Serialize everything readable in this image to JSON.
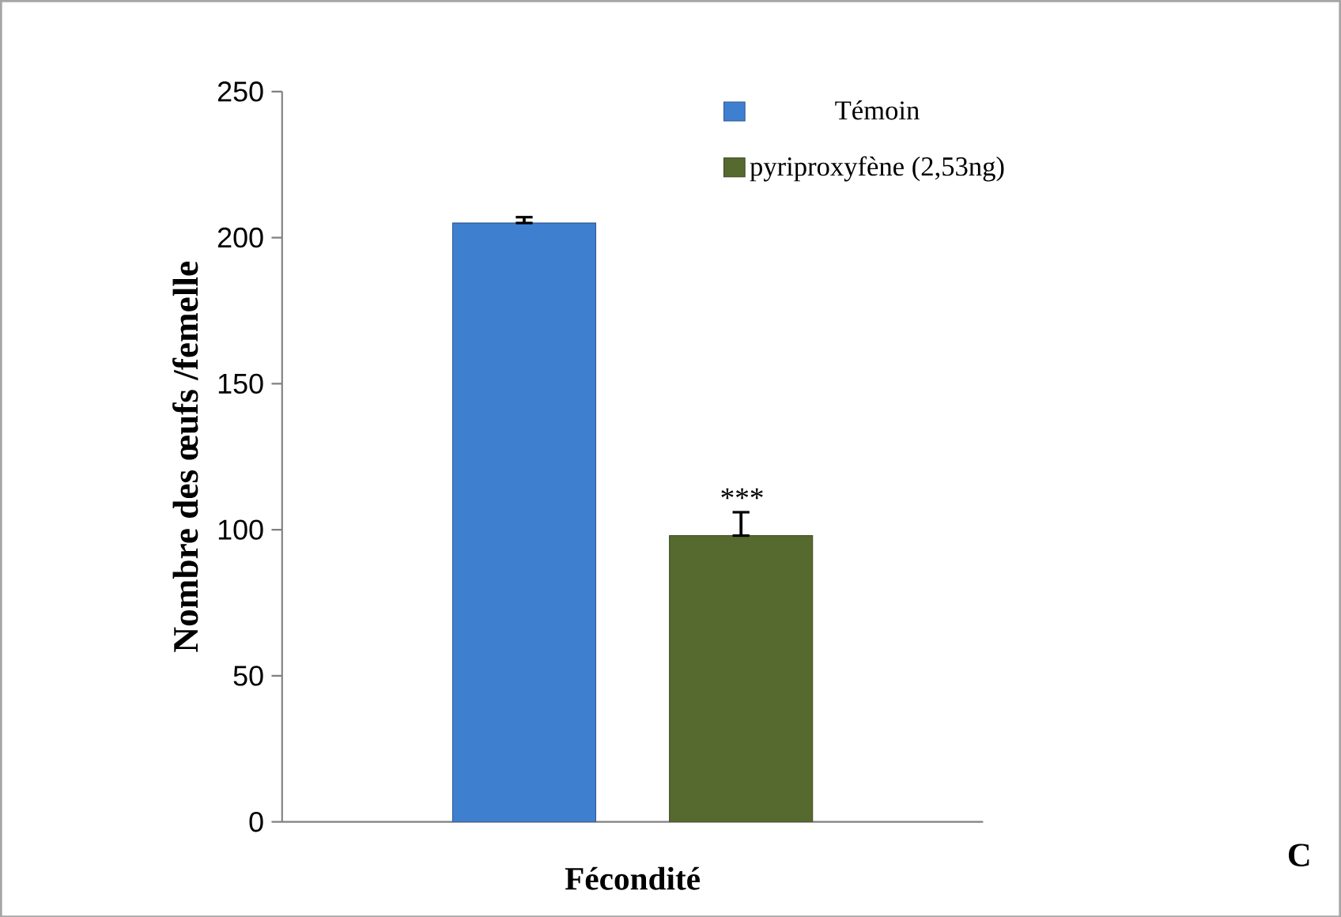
{
  "chart_data": {
    "type": "bar",
    "xlabel": "Fécondité",
    "ylabel": "Nombre des œufs /femelle",
    "categories": [
      null
    ],
    "series": [
      {
        "name": "Témoin",
        "color": "#3f7fd0",
        "values": [
          205
        ],
        "errors": [
          [
            205,
            207
          ]
        ]
      },
      {
        "name": "pyriproxyfène (2,53ng)",
        "color": "#56692e",
        "values": [
          98
        ],
        "errors": [
          [
            98,
            106
          ]
        ]
      }
    ],
    "ylim": [
      0,
      250
    ],
    "yticks": [
      0,
      50,
      100,
      150,
      200,
      250
    ],
    "legend": "top right",
    "grid": false,
    "annotations": [
      "***",
      "C"
    ]
  }
}
